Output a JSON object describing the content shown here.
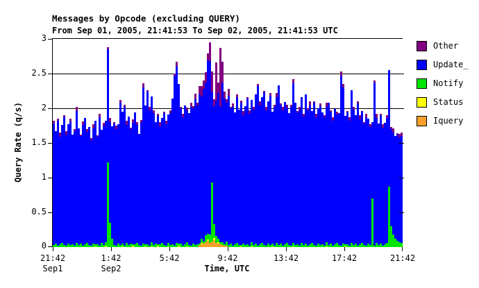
{
  "header": {
    "title": "Messages by Opcode (excluding QUERY)",
    "subtitle": "From Sep 01, 2005, 21:41:53 To Sep 02, 2005, 21:41:53 UTC"
  },
  "axes": {
    "y": {
      "label": "Query Rate (q/s)",
      "ticks": [
        0,
        0.5,
        1,
        1.5,
        2,
        2.5,
        3
      ],
      "max": 3
    },
    "x": {
      "label": "Time, UTC",
      "ticks": [
        "21:42",
        "1:42",
        "5:42",
        "9:42",
        "13:42",
        "17:42",
        "21:42"
      ],
      "sub_labels": [
        {
          "tick_index": 0,
          "label": "Sep1"
        },
        {
          "tick_index": 1,
          "label": "Sep2"
        }
      ]
    }
  },
  "legend": {
    "items": [
      {
        "label": "Other",
        "color": "#800080"
      },
      {
        "label": "Update_",
        "color": "#0000ff"
      },
      {
        "label": "Notify",
        "color": "#00e400"
      },
      {
        "label": "Status",
        "color": "#ffff00"
      },
      {
        "label": "Iquery",
        "color": "#f8a02c"
      }
    ]
  },
  "chart_data": {
    "type": "bar",
    "stacked": true,
    "title": "Messages by Opcode (excluding QUERY)",
    "xlabel": "Time, UTC",
    "ylabel": "Query Rate (q/s)",
    "ylim": [
      0,
      3
    ],
    "x_start": "Sep 01, 2005 21:42 UTC",
    "x_end": "Sep 02, 2005 21:42 UTC",
    "grid": true,
    "legend_position": "right",
    "bins": 168,
    "series_order": [
      "iquery",
      "status",
      "notify",
      "update",
      "other"
    ],
    "colors": {
      "other": "#800080",
      "update": "#0000ff",
      "notify": "#00e400",
      "status": "#ffff00",
      "iquery": "#f8a02c"
    },
    "update": [
      1.75,
      1.62,
      1.8,
      1.55,
      1.7,
      1.85,
      1.6,
      1.72,
      1.78,
      1.58,
      1.65,
      1.9,
      1.68,
      1.55,
      1.74,
      1.82,
      1.6,
      1.7,
      1.52,
      1.66,
      1.78,
      1.55,
      1.85,
      1.63,
      1.72,
      1.75,
      1.63,
      1.45,
      1.62,
      1.75,
      1.68,
      1.72,
      2.05,
      1.9,
      2.0,
      1.7,
      1.85,
      1.65,
      1.75,
      1.9,
      1.7,
      1.6,
      1.78,
      2.25,
      2.0,
      2.2,
      1.95,
      2.1,
      1.9,
      1.75,
      1.85,
      1.7,
      1.8,
      1.9,
      1.75,
      1.85,
      1.9,
      2.1,
      2.45,
      2.55,
      2.3,
      1.95,
      1.85,
      2.0,
      1.9,
      1.9,
      2.0,
      1.95,
      2.1,
      2.0,
      2.15,
      2.05,
      2.2,
      2.2,
      2.5,
      2.5,
      1.3,
      1.7,
      1.95,
      2.1,
      1.95,
      2.3,
      2.1,
      2.0,
      2.15,
      1.95,
      2.0,
      1.9,
      2.1,
      1.95,
      2.05,
      1.85,
      2.0,
      2.1,
      1.9,
      2.05,
      1.95,
      2.15,
      2.3,
      2.0,
      2.1,
      2.2,
      1.95,
      2.05,
      2.15,
      1.9,
      2.0,
      2.1,
      2.3,
      2.0,
      1.95,
      2.05,
      1.95,
      1.9,
      2.0,
      2.3,
      2.05,
      1.9,
      1.95,
      2.1,
      1.85,
      2.15,
      1.95,
      2.0,
      1.9,
      2.05,
      1.85,
      1.95,
      2.0,
      1.9,
      1.85,
      1.95,
      2.05,
      1.9,
      1.8,
      1.95,
      1.85,
      1.9,
      2.45,
      2.25,
      1.85,
      1.9,
      1.8,
      2.2,
      1.95,
      1.85,
      2.05,
      1.8,
      1.9,
      1.75,
      1.85,
      1.8,
      1.7,
      1.1,
      2.35,
      1.8,
      1.75,
      1.85,
      1.7,
      1.75,
      1.8,
      1.68,
      1.4,
      1.47,
      1.48,
      1.53,
      1.51,
      1.54
    ],
    "notify": [
      0.03,
      0.05,
      0.02,
      0.04,
      0.06,
      0.03,
      0.02,
      0.05,
      0.03,
      0.04,
      0.02,
      0.06,
      0.03,
      0.05,
      0.02,
      0.04,
      0.06,
      0.03,
      0.02,
      0.05,
      0.03,
      0.04,
      0.02,
      0.06,
      0.03,
      0.05,
      1.22,
      0.35,
      0.12,
      0.03,
      0.02,
      0.05,
      0.03,
      0.04,
      0.02,
      0.06,
      0.03,
      0.05,
      0.02,
      0.04,
      0.06,
      0.03,
      0.02,
      0.05,
      0.03,
      0.04,
      0.02,
      0.06,
      0.03,
      0.05,
      0.02,
      0.04,
      0.06,
      0.03,
      0.02,
      0.05,
      0.03,
      0.04,
      0.02,
      0.06,
      0.03,
      0.05,
      0.02,
      0.04,
      0.06,
      0.03,
      0.02,
      0.05,
      0.03,
      0.04,
      0.02,
      0.06,
      0.03,
      0.1,
      0.08,
      0.12,
      0.85,
      0.2,
      0.1,
      0.05,
      0.03,
      0.04,
      0.02,
      0.06,
      0.03,
      0.05,
      0.02,
      0.04,
      0.06,
      0.03,
      0.02,
      0.05,
      0.03,
      0.04,
      0.02,
      0.06,
      0.03,
      0.05,
      0.02,
      0.04,
      0.06,
      0.03,
      0.02,
      0.05,
      0.03,
      0.04,
      0.02,
      0.06,
      0.03,
      0.05,
      0.02,
      0.04,
      0.06,
      0.03,
      0.02,
      0.05,
      0.03,
      0.04,
      0.02,
      0.06,
      0.03,
      0.05,
      0.02,
      0.04,
      0.06,
      0.03,
      0.02,
      0.05,
      0.03,
      0.04,
      0.02,
      0.06,
      0.03,
      0.05,
      0.02,
      0.04,
      0.06,
      0.03,
      0.02,
      0.05,
      0.03,
      0.04,
      0.02,
      0.06,
      0.03,
      0.05,
      0.02,
      0.04,
      0.06,
      0.03,
      0.02,
      0.05,
      0.03,
      0.7,
      0.02,
      0.06,
      0.03,
      0.05,
      0.02,
      0.04,
      0.06,
      0.87,
      0.3,
      0.18,
      0.12,
      0.09,
      0.07,
      0.06
    ],
    "other": [
      0.04,
      0,
      0.03,
      0.06,
      0,
      0.02,
      0.05,
      0,
      0.04,
      0,
      0.03,
      0.06,
      0,
      0.02,
      0.05,
      0,
      0.04,
      0,
      0.03,
      0.06,
      0,
      0.02,
      0.05,
      0,
      0.04,
      0,
      0.03,
      0.06,
      0,
      0.02,
      0.05,
      0,
      0.04,
      0,
      0.03,
      0.06,
      0,
      0.02,
      0.05,
      0,
      0.04,
      0,
      0.03,
      0.06,
      0,
      0.02,
      0.05,
      0,
      0.04,
      0,
      0.03,
      0.06,
      0,
      0.02,
      0.05,
      0,
      0.04,
      0,
      0.03,
      0.06,
      0,
      0.02,
      0.05,
      0,
      0.04,
      0,
      0.06,
      0.03,
      0.08,
      0.04,
      0.12,
      0.15,
      0.12,
      0.15,
      0.1,
      0.27,
      0.3,
      0.1,
      0.55,
      0.15,
      0.85,
      0.3,
      0.1,
      0.05,
      0.1,
      0.02,
      0.05,
      0,
      0.04,
      0,
      0.03,
      0.06,
      0,
      0.02,
      0.05,
      0,
      0.04,
      0,
      0.03,
      0.06,
      0,
      0.02,
      0.05,
      0,
      0.04,
      0,
      0.03,
      0.06,
      0,
      0.02,
      0.05,
      0,
      0.04,
      0,
      0.03,
      0.06,
      0,
      0.02,
      0.05,
      0,
      0.04,
      0,
      0.03,
      0.06,
      0,
      0.02,
      0.05,
      0,
      0.04,
      0,
      0.03,
      0.06,
      0,
      0.02,
      0.05,
      0,
      0.04,
      0,
      0.06,
      0.05,
      0,
      0.02,
      0.05,
      0,
      0.04,
      0,
      0.03,
      0.06,
      0,
      0.02,
      0.05,
      0,
      0.04,
      0,
      0.03,
      0.06,
      0,
      0.02,
      0.05,
      0,
      0.04,
      0,
      0.03,
      0.06,
      0,
      0.02,
      0.05,
      0.05
    ],
    "status_sparse": {
      "20": 0.015,
      "25": 0.02,
      "33": 0.015,
      "38": 0.02,
      "44": 0.015,
      "47": 0.01,
      "50": 0.02,
      "55": 0.015,
      "60": 0.02,
      "64": 0.015,
      "71": 0.02,
      "74": 0.02,
      "77": 0.03,
      "79": 0.02,
      "90": 0.015,
      "95": 0.015,
      "105": 0.015,
      "115": 0.01,
      "131": 0.015,
      "140": 0.01
    },
    "iquery_sparse": {
      "70": 0.03,
      "71": 0.04,
      "72": 0.05,
      "73": 0.07,
      "74": 0.09,
      "75": 0.06,
      "76": 0.08,
      "77": 0.1,
      "78": 0.06,
      "79": 0.05,
      "80": 0.04,
      "81": 0.03,
      "82": 0.02,
      "83": 0.02
    }
  }
}
